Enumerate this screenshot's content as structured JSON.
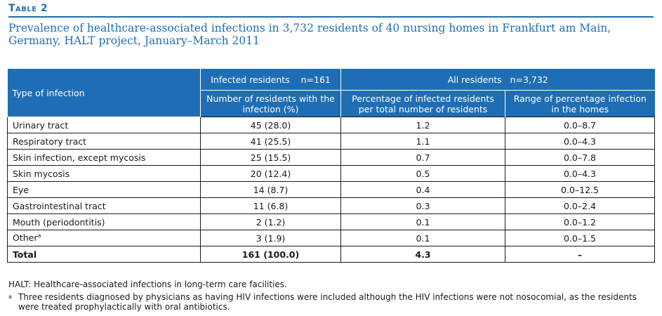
{
  "table_label": "Table 2",
  "caption": "Prevalence of healthcare-associated infections in 3,732 residents of 40 nursing homes in Frankfurt am Main, Germany, HALT project, January–March 2011",
  "header": {
    "type_col": "Type of infection",
    "group1_label": "Infected residents",
    "group1_n": "n=161",
    "group2_label": "All residents",
    "group2_n": "n=3,732",
    "col2": "Number of residents with the infection (%)",
    "col3": "Percentage of infected residents per total number of residents",
    "col4": "Range of percentage infection in the homes"
  },
  "rows": [
    {
      "type": "Urinary tract",
      "number": "45 (28.0)",
      "percentage": "1.2",
      "range": "0.0–8.7"
    },
    {
      "type": "Respiratory tract",
      "number": "41 (25.5)",
      "percentage": "1.1",
      "range": "0.0–4.3"
    },
    {
      "type": "Skin infection, except mycosis",
      "number": "25 (15.5)",
      "percentage": "0.7",
      "range": "0.0–7.8"
    },
    {
      "type": "Skin mycosis",
      "number": "20 (12.4)",
      "percentage": "0.5",
      "range": "0.0–4.3"
    },
    {
      "type": "Eye",
      "number": "14 (8.7)",
      "percentage": "0.4",
      "range": "0.0–12.5"
    },
    {
      "type": "Gastrointestinal tract",
      "number": "11 (6.8)",
      "percentage": "0.3",
      "range": "0.0–2.4"
    },
    {
      "type": "Mouth (periodontitis)",
      "number": "2 (1.2)",
      "percentage": "0.1",
      "range": "0.0–1.2"
    },
    {
      "type": "Other",
      "type_sup": "a",
      "number": "3 (1.9)",
      "percentage": "0.1",
      "range": "0.0–1.5"
    }
  ],
  "total": {
    "type": "Total",
    "number": "161 (100.0)",
    "percentage": "4.3",
    "range": "–"
  },
  "footnotes": {
    "abbrev": "HALT: Healthcare-associated infections in long-term care facilities.",
    "a_mark": "a",
    "a_text": "Three residents diagnosed by physicians as having HIV infections were included although the HIV infections were not nosocomial, as the residents were treated prophylactically with oral antibiotics."
  },
  "colors": {
    "accent": "#1f6eb5",
    "header_text": "#ffffff",
    "body_text": "#1a1a1a"
  }
}
